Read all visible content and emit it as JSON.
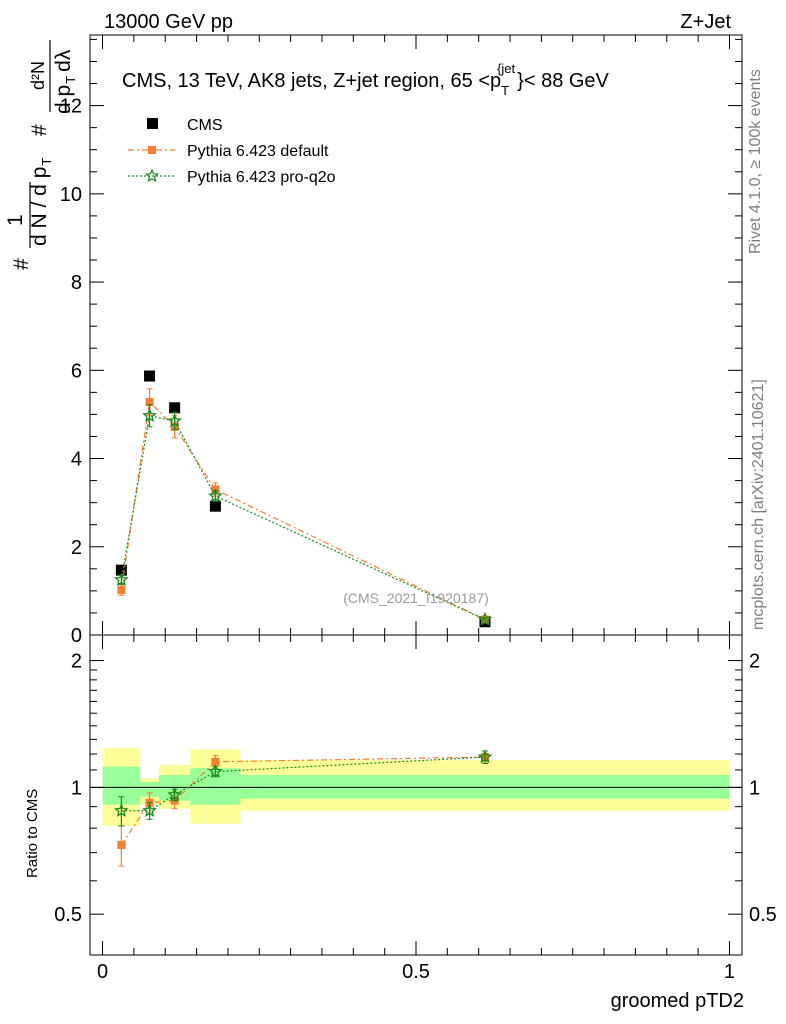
{
  "header": {
    "left": "13000 GeV pp",
    "right": "Z+Jet"
  },
  "side_labels": {
    "rivet": "Rivet 4.1.0, ≥ 100k events",
    "mcplots": "mcplots.cern.ch [arXiv:2401.10621]"
  },
  "chart_data": [
    {
      "type": "scatter",
      "panel": "main",
      "title_main": "CMS, 13 TeV, AK8 jets, Z+jet region, 65 <p",
      "title_sub": "T",
      "title_sup": "{jet",
      "title_end": "}< 88 GeV",
      "watermark": "(CMS_2021_I1920187)",
      "ylabel_parts": {
        "hash1": "#",
        "one": "1",
        "dn": "d N / d p",
        "t1": "T",
        "hash2": "#",
        "d2n": "d²N",
        "dpt": "d p",
        "t2": "T",
        "dl": "dλ"
      },
      "xlim": [
        -0.02,
        1.02
      ],
      "ylim": [
        0,
        13.6
      ],
      "yticks": [
        {
          "v": 0,
          "label": "0"
        },
        {
          "v": 2,
          "label": "2"
        },
        {
          "v": 4,
          "label": "4"
        },
        {
          "v": 6,
          "label": "6"
        },
        {
          "v": 8,
          "label": "8"
        },
        {
          "v": 10,
          "label": "10"
        },
        {
          "v": 12,
          "label": "12"
        }
      ],
      "series": [
        {
          "name": "CMS",
          "color": "#000000",
          "marker": "square",
          "line": "none",
          "x": [
            0.03,
            0.075,
            0.115,
            0.18,
            0.61
          ],
          "y": [
            1.47,
            5.87,
            5.15,
            2.92,
            0.3
          ],
          "err": [
            0.05,
            0.08,
            0.08,
            0.06,
            0.02
          ]
        },
        {
          "name": "Pythia 6.423 default",
          "color": "#f47f31",
          "marker": "square",
          "line": "dashdot",
          "x": [
            0.03,
            0.075,
            0.115,
            0.18,
            0.61
          ],
          "y": [
            1.02,
            5.28,
            4.72,
            3.3,
            0.35
          ],
          "err": [
            0.12,
            0.3,
            0.25,
            0.15,
            0.03
          ]
        },
        {
          "name": "Pythia 6.423 pro-q2o",
          "color": "#1a8a1a",
          "marker": "star",
          "line": "dotted",
          "x": [
            0.03,
            0.075,
            0.115,
            0.18,
            0.61
          ],
          "y": [
            1.25,
            4.97,
            4.85,
            3.15,
            0.35
          ],
          "err": [
            0.1,
            0.25,
            0.2,
            0.12,
            0.03
          ]
        }
      ]
    },
    {
      "type": "scatter",
      "panel": "ratio",
      "ylabel": "Ratio to CMS",
      "xlabel": "groomed pTD2",
      "xlim": [
        -0.02,
        1.02
      ],
      "ylim_log": [
        0.4,
        2.3
      ],
      "yticks": [
        {
          "v": 0.5,
          "label": "0.5"
        },
        {
          "v": 1,
          "label": "1"
        },
        {
          "v": 2,
          "label": "2"
        }
      ],
      "xticks": [
        {
          "v": 0,
          "label": "0"
        },
        {
          "v": 0.5,
          "label": "0.5"
        },
        {
          "v": 1,
          "label": "1"
        }
      ],
      "bands": [
        {
          "x0": 0.0,
          "x1": 0.06,
          "y_lo": 0.81,
          "y_hi": 1.24,
          "g_lo": 0.91,
          "g_hi": 1.12
        },
        {
          "x0": 0.06,
          "x1": 0.09,
          "y_lo": 0.91,
          "y_hi": 1.05,
          "g_lo": 0.95,
          "g_hi": 1.03
        },
        {
          "x0": 0.09,
          "x1": 0.14,
          "y_lo": 0.89,
          "y_hi": 1.13,
          "g_lo": 0.93,
          "g_hi": 1.07
        },
        {
          "x0": 0.14,
          "x1": 0.22,
          "y_lo": 0.82,
          "y_hi": 1.23,
          "g_lo": 0.91,
          "g_hi": 1.11
        },
        {
          "x0": 0.22,
          "x1": 1.0,
          "y_lo": 0.88,
          "y_hi": 1.16,
          "g_lo": 0.94,
          "g_hi": 1.07
        }
      ],
      "series": [
        {
          "name": "Pythia 6.423 default",
          "color": "#f47f31",
          "marker": "square",
          "line": "dashdot",
          "x": [
            0.03,
            0.075,
            0.115,
            0.18,
            0.61
          ],
          "y": [
            0.73,
            0.92,
            0.93,
            1.15,
            1.18
          ],
          "err": [
            0.08,
            0.05,
            0.04,
            0.04,
            0.04
          ]
        },
        {
          "name": "Pythia 6.423 pro-q2o",
          "color": "#1a8a1a",
          "marker": "star",
          "line": "dotted",
          "x": [
            0.03,
            0.075,
            0.115,
            0.18,
            0.61
          ],
          "y": [
            0.88,
            0.88,
            0.96,
            1.09,
            1.18
          ],
          "err": [
            0.07,
            0.04,
            0.03,
            0.03,
            0.04
          ]
        }
      ]
    }
  ]
}
